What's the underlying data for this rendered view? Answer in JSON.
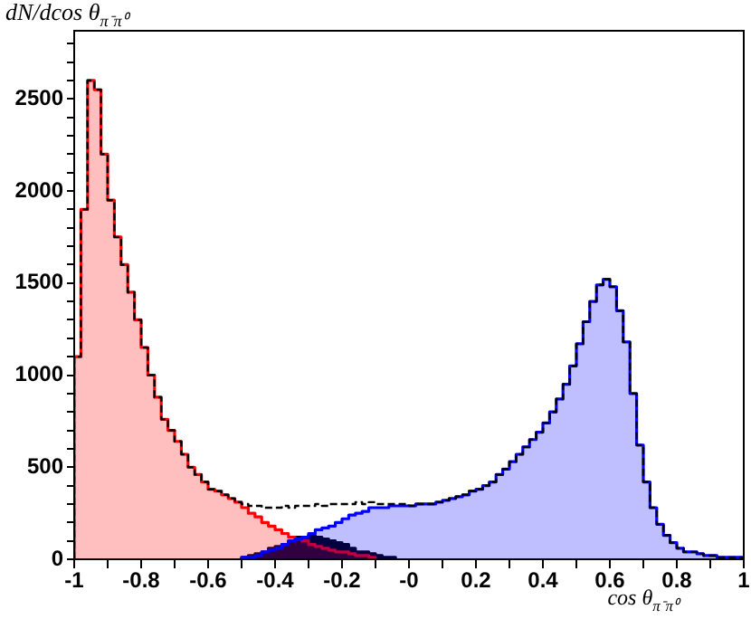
{
  "chart_data": {
    "type": "histogram",
    "ylabel": "dN/dcos θ$_{π⁻π⁰}$",
    "xlabel": "cos θ$_{π⁻π⁰}$",
    "bins": [
      -1,
      -0.98,
      -0.96,
      -0.94,
      -0.92,
      -0.9,
      -0.88,
      -0.86,
      -0.84,
      -0.82,
      -0.8,
      -0.78,
      -0.76,
      -0.74,
      -0.72,
      -0.7,
      -0.68,
      -0.66,
      -0.64,
      -0.62,
      -0.6,
      -0.58,
      -0.56,
      -0.54,
      -0.52,
      -0.5,
      -0.48,
      -0.46,
      -0.44,
      -0.42,
      -0.4,
      -0.38,
      -0.36,
      -0.34,
      -0.32,
      -0.3,
      -0.28,
      -0.26,
      -0.24,
      -0.22,
      -0.2,
      -0.18,
      -0.16,
      -0.14,
      -0.12,
      -0.1,
      -0.08,
      -0.06,
      -0.04,
      -0.02,
      0,
      0.02,
      0.04,
      0.06,
      0.08,
      0.1,
      0.12,
      0.14,
      0.16,
      0.18,
      0.2,
      0.22,
      0.24,
      0.26,
      0.28,
      0.3,
      0.32,
      0.34,
      0.36,
      0.38,
      0.4,
      0.42,
      0.44,
      0.46,
      0.48,
      0.5,
      0.52,
      0.54,
      0.56,
      0.58,
      0.6,
      0.62,
      0.64,
      0.66,
      0.68,
      0.7,
      0.72,
      0.74,
      0.76,
      0.78,
      0.8,
      0.82,
      0.84,
      0.86,
      0.88,
      0.9,
      0.92,
      0.94,
      0.96,
      0.98,
      1
    ],
    "series": [
      {
        "color": "#ff0000",
        "bins": [
          -1,
          -0.98,
          -0.96,
          -0.94,
          -0.92,
          -0.9,
          -0.88,
          -0.86,
          -0.84,
          -0.82,
          -0.8,
          -0.78,
          -0.76,
          -0.74,
          -0.72,
          -0.7,
          -0.68,
          -0.66,
          -0.64,
          -0.62,
          -0.6,
          -0.58,
          -0.56,
          -0.54,
          -0.52,
          -0.5,
          -0.48,
          -0.46,
          -0.44,
          -0.42,
          -0.4,
          -0.38,
          -0.36,
          -0.34,
          -0.32,
          -0.3,
          -0.28,
          -0.26,
          -0.24,
          -0.22,
          -0.2,
          -0.18,
          -0.16,
          -0.14,
          -0.12,
          -0.1
        ],
        "values": [
          1100,
          1900,
          2600,
          2550,
          2200,
          1950,
          1750,
          1600,
          1450,
          1300,
          1150,
          1000,
          880,
          760,
          700,
          640,
          570,
          500,
          460,
          420,
          380,
          370,
          350,
          330,
          310,
          280,
          250,
          230,
          200,
          180,
          160,
          140,
          120,
          110,
          100,
          80,
          70,
          60,
          50,
          40,
          40,
          30,
          20,
          20,
          10
        ]
      },
      {
        "color": "#0000ff",
        "bins": [
          -0.5,
          -0.48,
          -0.46,
          -0.44,
          -0.42,
          -0.4,
          -0.38,
          -0.36,
          -0.34,
          -0.32,
          -0.3,
          -0.28,
          -0.26,
          -0.24,
          -0.22,
          -0.2,
          -0.18,
          -0.16,
          -0.14,
          -0.12,
          -0.1,
          -0.08,
          -0.06,
          -0.04,
          -0.02,
          0,
          0.02,
          0.04,
          0.06,
          0.08,
          0.1,
          0.12,
          0.14,
          0.16,
          0.18,
          0.2,
          0.22,
          0.24,
          0.26,
          0.28,
          0.3,
          0.32,
          0.34,
          0.36,
          0.38,
          0.4,
          0.42,
          0.44,
          0.46,
          0.48,
          0.5,
          0.52,
          0.54,
          0.56,
          0.58,
          0.6,
          0.62,
          0.64,
          0.66,
          0.68,
          0.7,
          0.72,
          0.74,
          0.76,
          0.78,
          0.8,
          0.82,
          0.84,
          0.86,
          0.88,
          0.9,
          0.92,
          0.94,
          0.96,
          0.98,
          1
        ],
        "values": [
          10,
          10,
          20,
          40,
          50,
          60,
          80,
          100,
          110,
          120,
          140,
          160,
          170,
          180,
          200,
          220,
          240,
          250,
          260,
          280,
          280,
          280,
          290,
          290,
          290,
          290,
          300,
          300,
          300,
          310,
          320,
          330,
          340,
          350,
          370,
          380,
          400,
          420,
          460,
          490,
          530,
          570,
          610,
          650,
          690,
          740,
          800,
          870,
          950,
          1050,
          1170,
          1290,
          1400,
          1490,
          1520,
          1480,
          1350,
          1180,
          900,
          620,
          420,
          280,
          190,
          130,
          90,
          60,
          40,
          40,
          30,
          20,
          20,
          10,
          10,
          10,
          10
        ]
      },
      {
        "color": "#000000",
        "bins": [
          -0.5,
          -0.48,
          -0.46,
          -0.44,
          -0.42,
          -0.4,
          -0.38,
          -0.36,
          -0.34,
          -0.32,
          -0.3,
          -0.28,
          -0.26,
          -0.24,
          -0.22,
          -0.2,
          -0.18,
          -0.16,
          -0.14,
          -0.12,
          -0.1,
          -0.08,
          -0.06,
          -0.04
        ],
        "values": [
          10,
          20,
          30,
          40,
          60,
          70,
          80,
          100,
          120,
          120,
          130,
          120,
          110,
          100,
          90,
          80,
          60,
          40,
          40,
          30,
          20,
          10,
          10
        ]
      },
      {
        "color": "#000000",
        "line_style": "dashed",
        "values": [
          1100,
          1900,
          2600,
          2550,
          2200,
          1950,
          1750,
          1600,
          1450,
          1300,
          1150,
          1000,
          880,
          760,
          700,
          640,
          570,
          500,
          460,
          420,
          380,
          370,
          350,
          330,
          310,
          300,
          290,
          290,
          280,
          280,
          280,
          290,
          280,
          290,
          290,
          290,
          300,
          290,
          300,
          300,
          300,
          300,
          310,
          300,
          310,
          300,
          300,
          300,
          300,
          300,
          290,
          300,
          300,
          300,
          310,
          320,
          330,
          340,
          350,
          370,
          380,
          400,
          420,
          460,
          490,
          530,
          570,
          610,
          650,
          690,
          740,
          800,
          870,
          950,
          1050,
          1170,
          1290,
          1400,
          1490,
          1520,
          1480,
          1350,
          1180,
          900,
          620,
          420,
          280,
          190,
          130,
          90,
          60,
          40,
          40,
          30,
          20,
          20,
          10,
          10,
          10,
          10
        ]
      }
    ],
    "xlim": [
      -1,
      1
    ],
    "ylim": [
      0,
      2870
    ],
    "xticks": [
      -1,
      {
        "value": -0.9,
        "label": null
      },
      -0.8,
      {
        "value": -0.7,
        "label": null
      },
      -0.6,
      {
        "value": -0.5,
        "label": null
      },
      -0.4,
      {
        "value": -0.3,
        "label": null
      },
      -0.2,
      {
        "value": -0.1,
        "label": null
      },
      {
        "value": 0,
        "label": "-0"
      },
      {
        "value": 0.1,
        "label": null
      },
      0.2,
      {
        "value": 0.3,
        "label": null
      },
      0.4,
      {
        "value": 0.5,
        "label": null
      },
      0.6,
      {
        "value": 0.7,
        "label": null
      },
      0.8,
      {
        "value": 0.9,
        "label": null
      },
      1
    ],
    "yticks": [
      0,
      {
        "value": 100,
        "label": null
      },
      {
        "value": 200,
        "label": null
      },
      {
        "value": 300,
        "label": null
      },
      {
        "value": 400,
        "label": null
      },
      500,
      {
        "value": 600,
        "label": null
      },
      {
        "value": 700,
        "label": null
      },
      {
        "value": 800,
        "label": null
      },
      {
        "value": 900,
        "label": null
      },
      1000,
      {
        "value": 1100,
        "label": null
      },
      {
        "value": 1200,
        "label": null
      },
      {
        "value": 1300,
        "label": null
      },
      {
        "value": 1400,
        "label": null
      },
      1500,
      {
        "value": 1600,
        "label": null
      },
      {
        "value": 1700,
        "label": null
      },
      {
        "value": 1800,
        "label": null
      },
      {
        "value": 1900,
        "label": null
      },
      2000,
      {
        "value": 2100,
        "label": null
      },
      {
        "value": 2200,
        "label": null
      },
      {
        "value": 2300,
        "label": null
      },
      {
        "value": 2400,
        "label": null
      },
      2500,
      {
        "value": 2600,
        "label": null
      },
      {
        "value": 2700,
        "label": null
      },
      {
        "value": 2800,
        "label": null
      }
    ],
    "grid": false,
    "legend": false
  }
}
